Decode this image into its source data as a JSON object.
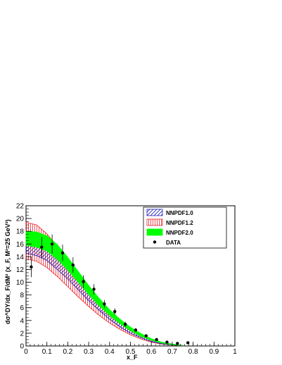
{
  "chart_data": {
    "type": "line",
    "title": "",
    "xlabel": "x_F",
    "ylabel": "dσ^DY/dx_F/dM² (x_F, M²=25 GeV²)",
    "xlim": [
      0,
      1
    ],
    "ylim": [
      0,
      22
    ],
    "x_ticks": [
      "0",
      "0.1",
      "0.2",
      "0.3",
      "0.4",
      "0.5",
      "0.6",
      "0.7",
      "0.8",
      "0.9",
      "1"
    ],
    "y_ticks": [
      "0",
      "2",
      "4",
      "6",
      "8",
      "10",
      "12",
      "14",
      "16",
      "18",
      "20",
      "22"
    ],
    "grid": false,
    "legend_position": "top-right",
    "series": [
      {
        "name": "NNPDF1.0",
        "style": "band",
        "hatch": "diagonal",
        "color": "#1f1fb4",
        "x": [
          0.0,
          0.05,
          0.1,
          0.15,
          0.2,
          0.25,
          0.3,
          0.35,
          0.4,
          0.45,
          0.5,
          0.55,
          0.6,
          0.65,
          0.7,
          0.75
        ],
        "upper": [
          17.0,
          16.9,
          16.0,
          14.6,
          12.8,
          10.9,
          9.0,
          7.2,
          5.6,
          4.1,
          2.9,
          1.9,
          1.1,
          0.6,
          0.3,
          0.1
        ],
        "lower": [
          14.5,
          14.2,
          13.4,
          12.0,
          10.5,
          8.8,
          7.1,
          5.6,
          4.2,
          3.0,
          2.0,
          1.3,
          0.7,
          0.35,
          0.15,
          0.05
        ]
      },
      {
        "name": "NNPDF1.2",
        "style": "band",
        "hatch": "vertical",
        "color": "#e8202a",
        "x": [
          0.0,
          0.05,
          0.1,
          0.15,
          0.2,
          0.25,
          0.3,
          0.35,
          0.4,
          0.45,
          0.5,
          0.55,
          0.6,
          0.65,
          0.7,
          0.75
        ],
        "upper": [
          19.4,
          19.0,
          17.6,
          15.6,
          13.2,
          10.8,
          8.6,
          6.6,
          4.9,
          3.5,
          2.4,
          1.55,
          0.9,
          0.45,
          0.2,
          0.05
        ],
        "lower": [
          13.7,
          13.3,
          12.3,
          10.9,
          9.3,
          7.7,
          6.2,
          4.8,
          3.6,
          2.6,
          1.75,
          1.1,
          0.6,
          0.3,
          0.12,
          0.03
        ]
      },
      {
        "name": "NNPDF2.0",
        "style": "band",
        "hatch": "solid",
        "color": "#00ff00",
        "x": [
          0.0,
          0.05,
          0.1,
          0.15,
          0.2,
          0.25,
          0.3,
          0.35,
          0.4,
          0.45,
          0.5,
          0.55,
          0.6,
          0.65,
          0.7,
          0.75
        ],
        "upper": [
          18.0,
          17.9,
          17.3,
          15.9,
          13.9,
          11.7,
          9.5,
          7.5,
          5.7,
          4.2,
          2.95,
          1.95,
          1.15,
          0.6,
          0.28,
          0.08
        ],
        "lower": [
          15.8,
          15.5,
          14.9,
          13.6,
          11.9,
          10.0,
          8.1,
          6.3,
          4.8,
          3.5,
          2.4,
          1.5,
          0.9,
          0.45,
          0.2,
          0.05
        ]
      },
      {
        "name": "DATA",
        "style": "points",
        "color": "#000000",
        "x": [
          0.025,
          0.075,
          0.125,
          0.175,
          0.225,
          0.275,
          0.325,
          0.375,
          0.425,
          0.475,
          0.525,
          0.575,
          0.625,
          0.675,
          0.725,
          0.775
        ],
        "y": [
          12.4,
          15.5,
          16.0,
          14.6,
          12.7,
          10.1,
          8.9,
          6.6,
          5.4,
          3.4,
          2.5,
          1.6,
          1.0,
          0.6,
          0.4,
          0.5
        ],
        "err": [
          1.6,
          1.6,
          1.5,
          1.3,
          1.2,
          1.0,
          0.8,
          0.6,
          0.5,
          0.4,
          0.3,
          0.2,
          0.15,
          0.1,
          0.1,
          0.1
        ]
      }
    ]
  }
}
